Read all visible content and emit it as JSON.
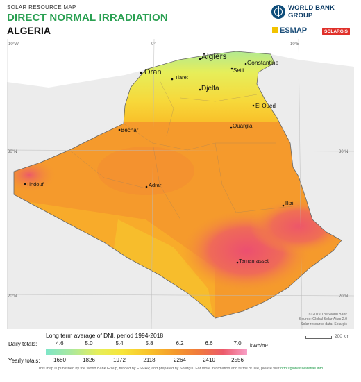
{
  "header": {
    "kicker": "SOLAR RESOURCE MAP",
    "title": "DIRECT NORMAL IRRADIATION",
    "country": "ALGERIA",
    "wb_logo": "WORLD BANK GROUP",
    "esmap_logo": "ESMAP",
    "solargis_logo": "SOLARGIS"
  },
  "map": {
    "graticule": {
      "lon_w": "10°W",
      "lon_0": "0°",
      "lon_e": "10°E",
      "lat_30": "30°N",
      "lat_20": "20°N"
    },
    "cities": {
      "algiers": "Algiers",
      "oran": "Oran",
      "tiaret": "Tiaret",
      "setif": "Setif",
      "constantine": "Constantine",
      "djelfa": "Djelfa",
      "el_oued": "El Oued",
      "bechar": "Bechar",
      "ouargla": "Ouargla",
      "tindouf": "Tindouf",
      "adrar": "Adrar",
      "illizi": "Illizi",
      "tamanrasset": "Tamanrasset"
    },
    "credit": [
      "© 2019 The World Bank",
      "Source: Global Solar Atlas 2.0",
      "Solar resource data: Solargis"
    ],
    "scale": "200 km"
  },
  "legend": {
    "title": "Long term average of DNI, period 1994-2018",
    "daily_label": "Daily totals:",
    "yearly_label": "Yearly totals:",
    "daily_values": [
      "4.6",
      "5.0",
      "5.4",
      "5.8",
      "6.2",
      "6.6",
      "7.0"
    ],
    "yearly_values": [
      "1680",
      "1826",
      "1972",
      "2118",
      "2264",
      "2410",
      "2556"
    ],
    "unit": "kWh/m²"
  },
  "colors": {
    "coast_low": "#7ee6c8",
    "north_mid": "#e6ee5a",
    "plateau": "#f8c02a",
    "sahara": "#f59a2c",
    "high": "#ec5a6a"
  },
  "footer": {
    "text": "This map is published by the World Bank Group, funded by ESMAP, and prepared by Solargis. For more information and terms of use, please visit",
    "link": "http://globalsolaratlas.info"
  }
}
